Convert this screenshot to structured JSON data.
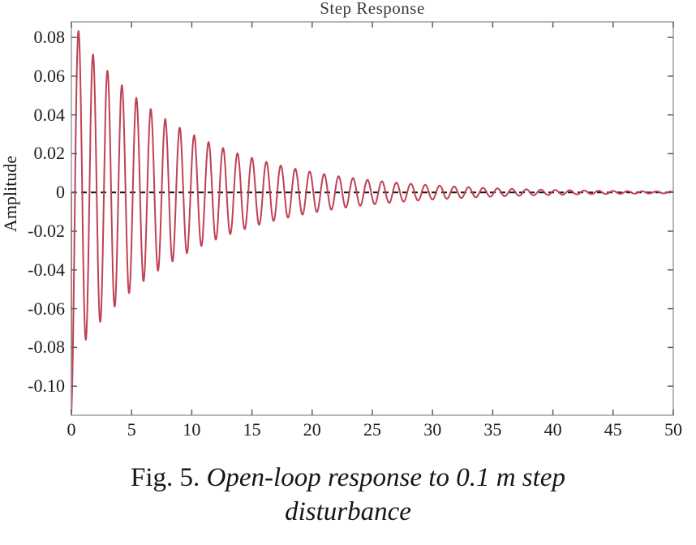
{
  "chart_data": {
    "type": "line",
    "title": "Step Response",
    "xlabel": "",
    "ylabel": "Amplitude",
    "xlim": [
      0,
      50
    ],
    "ylim": [
      -0.115,
      0.088
    ],
    "x_ticks": [
      0,
      5,
      10,
      15,
      20,
      25,
      30,
      35,
      40,
      45,
      50
    ],
    "y_ticks": [
      {
        "value": 0.08,
        "label": "0.08"
      },
      {
        "value": 0.06,
        "label": "0.06"
      },
      {
        "value": 0.04,
        "label": "0.04"
      },
      {
        "value": 0.02,
        "label": "0.02"
      },
      {
        "value": 0,
        "label": "0"
      },
      {
        "value": -0.02,
        "label": "-0.02"
      },
      {
        "value": -0.04,
        "label": "-0.04"
      },
      {
        "value": -0.06,
        "label": "-0.06"
      },
      {
        "value": -0.08,
        "label": "-0.08"
      },
      {
        "value": -0.1,
        "label": "-0.10"
      }
    ],
    "grid": false,
    "legend": "none",
    "axis_box_color": "#9aa0a0",
    "tick_color": "#5a6060",
    "zero_line": {
      "y": 0,
      "style": "dashed",
      "color": "#151515",
      "dash": [
        7,
        5
      ],
      "width": 2
    },
    "series": [
      {
        "name": "open-loop step response",
        "color": "#bf4254",
        "line_width": 2,
        "model": {
          "kind": "decaying_sinusoid",
          "formula": "y(t) = -(A1*exp(-s1*t) + A2*exp(-s2*t)) * cos(2*PI*t/T)",
          "A1": 0.086,
          "s1": 0.105,
          "A2": 0.028,
          "s2": 4.0,
          "T": 1.2,
          "t_start": 0,
          "t_end": 50,
          "t_step": 0.02,
          "starts_from_zero": true
        },
        "key_points": {
          "initial_dip": -0.114,
          "first_peak_t": 0.6,
          "first_peak_y": 0.082,
          "second_peak_t": 1.8,
          "second_peak_y": 0.071,
          "oscillation_period": 1.2,
          "envelope_decay_per_period": 0.88,
          "steady_state_value": 0
        }
      }
    ]
  },
  "caption": {
    "fig_label": "Fig. 5.",
    "line1": "Open-loop response to 0.1 m step",
    "line2": "disturbance"
  }
}
